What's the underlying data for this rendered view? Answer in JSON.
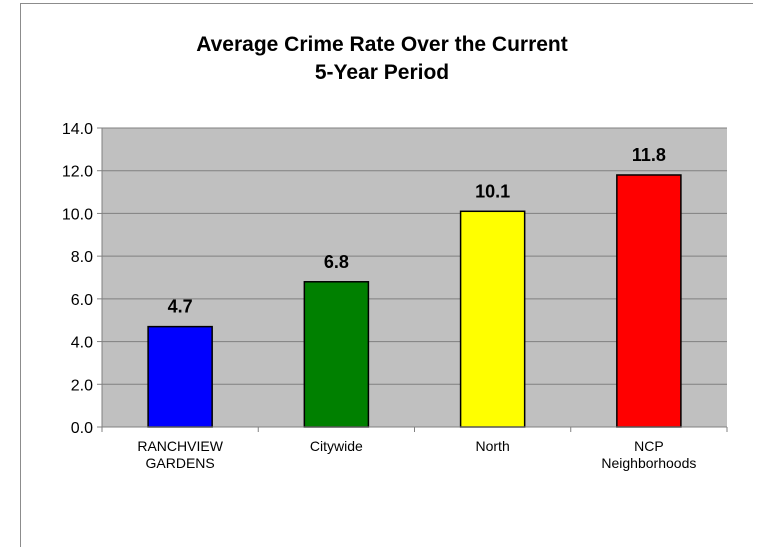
{
  "chart_data": {
    "type": "bar",
    "title_lines": [
      "Average Crime Rate Over the Current",
      "5-Year Period"
    ],
    "categories": [
      [
        "RANCHVIEW",
        "GARDENS"
      ],
      [
        "Citywide"
      ],
      [
        "North"
      ],
      [
        "NCP",
        "Neighborhoods"
      ]
    ],
    "values": [
      4.7,
      6.8,
      10.1,
      11.8
    ],
    "data_labels": [
      "4.7",
      "6.8",
      "10.1",
      "11.8"
    ],
    "bar_colors": [
      "#0000ff",
      "#008000",
      "#ffff00",
      "#ff0000"
    ],
    "ylim": [
      0,
      14
    ],
    "ytick_step": 2,
    "ytick_labels": [
      "0.0",
      "2.0",
      "4.0",
      "6.0",
      "8.0",
      "10.0",
      "12.0",
      "14.0"
    ],
    "plot_background": "#c0c0c0",
    "grid": true,
    "xlabel": "",
    "ylabel": ""
  }
}
